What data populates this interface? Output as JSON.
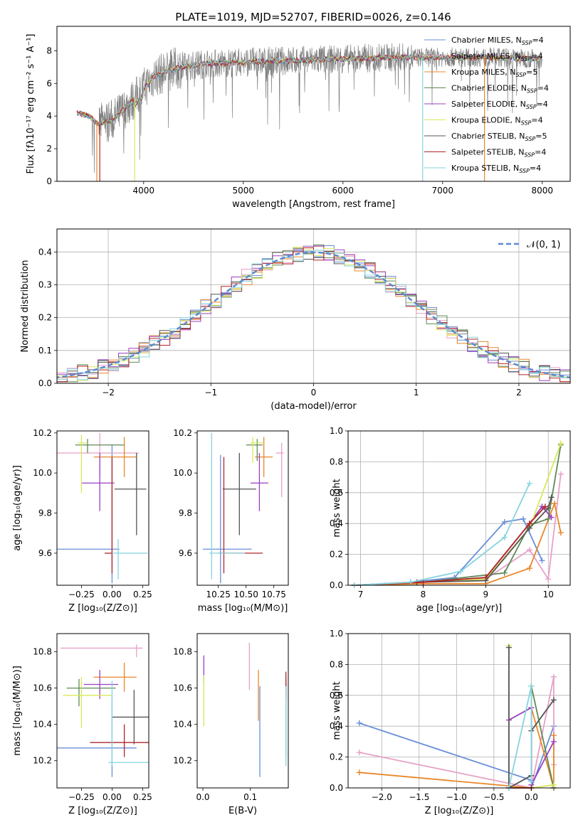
{
  "figure_title": "PLATE=1019, MJD=52707, FIBERID=0026, z=0.146",
  "colors": [
    "#6a8fd8",
    "#e7a0c8",
    "#e8872a",
    "#5f8a55",
    "#9b3fc0",
    "#d8e85a",
    "#555555",
    "#b3242a",
    "#86d4de"
  ],
  "chart_data": [
    {
      "id": "spectrum",
      "type": "line",
      "xlabel": "wavelength [Angstrom, rest frame]",
      "ylabel": "Flux [fλ10⁻¹⁷ erg cm⁻² s⁻¹ A⁻¹]",
      "xlim": [
        3130,
        8280
      ],
      "ylim": [
        0,
        9.5
      ],
      "xticks": [
        4000,
        5000,
        6000,
        7000,
        8000
      ],
      "yticks": [
        0,
        2,
        4,
        6,
        8
      ],
      "legend_position": "upper-right",
      "continuum": {
        "x": [
          3330,
          3450,
          3550,
          3700,
          3900,
          4100,
          4300,
          4600,
          5000,
          5500,
          6000,
          6500,
          7000,
          7500,
          8000
        ],
        "y": [
          4.2,
          4.0,
          3.5,
          3.8,
          5.0,
          6.4,
          6.9,
          7.2,
          7.3,
          7.4,
          7.5,
          7.6,
          7.6,
          7.6,
          7.5
        ]
      },
      "data_note_range": [
        3330,
        8000
      ],
      "series": [
        {
          "name": "Chabrier MILES, N",
          "sub": "SSP",
          "suffix": "=4"
        },
        {
          "name": "Salpeter MILES, N",
          "sub": "SSP",
          "suffix": "=4"
        },
        {
          "name": "Kroupa MILES, N",
          "sub": "SSP",
          "suffix": "=5"
        },
        {
          "name": "Chabrier ELODIE, N",
          "sub": "SSP",
          "suffix": "=4"
        },
        {
          "name": "Salpeter ELODIE, N",
          "sub": "SSP",
          "suffix": "=4"
        },
        {
          "name": "Kroupa ELODIE, N",
          "sub": "SSP",
          "suffix": "=4"
        },
        {
          "name": "Chabrier STELIB, N",
          "sub": "SSP",
          "suffix": "=5"
        },
        {
          "name": "Salpeter STELIB, N",
          "sub": "SSP",
          "suffix": "=4"
        },
        {
          "name": "Kroupa STELIB, N",
          "sub": "SSP",
          "suffix": "=4"
        }
      ]
    },
    {
      "id": "residuals",
      "type": "histogram",
      "xlabel": "(data-model)/error",
      "ylabel": "Normed distribution",
      "xlim": [
        -2.5,
        2.5
      ],
      "ylim": [
        0,
        0.47
      ],
      "xticks": [
        -2,
        -1,
        0,
        1,
        2
      ],
      "yticks": [
        0.0,
        0.1,
        0.2,
        0.3,
        0.4
      ],
      "grid": true,
      "legend_label": "𝒩(0, 1)",
      "legend_position": "upper-right",
      "bin_width": 0.1
    },
    {
      "id": "age_vs_Z",
      "type": "errorbar",
      "xlabel": "Z [log₁₀(Z/Z⊙)]",
      "ylabel": "age  [log₁₀(age/yr)]",
      "xlim": [
        -0.45,
        0.3
      ],
      "ylim": [
        9.44,
        10.21
      ],
      "xticks": [
        -0.25,
        0.0,
        0.25
      ],
      "yticks": [
        9.6,
        9.8,
        10.0,
        10.2
      ],
      "points": [
        {
          "x": 0.0,
          "y": 9.62,
          "xerr": [
            0.45,
            0.06
          ],
          "yerr": [
            0.17,
            0.52
          ]
        },
        {
          "x": -0.1,
          "y": 10.1,
          "xerr": [
            0.35,
            0.32
          ],
          "yerr": [
            0.12,
            0.1
          ]
        },
        {
          "x": 0.1,
          "y": 10.08,
          "xerr": [
            0.25,
            0.1
          ],
          "yerr": [
            0.1,
            0.1
          ]
        },
        {
          "x": -0.2,
          "y": 10.14,
          "xerr": [
            0.1,
            0.3
          ],
          "yerr": [
            0.04,
            0.03
          ]
        },
        {
          "x": -0.1,
          "y": 9.95,
          "xerr": [
            0.15,
            0.12
          ],
          "yerr": [
            0.14,
            0.15
          ]
        },
        {
          "x": -0.25,
          "y": 10.15,
          "xerr": [
            0.03,
            0.04
          ],
          "yerr": [
            0.25,
            0.04
          ]
        },
        {
          "x": 0.2,
          "y": 9.92,
          "xerr": [
            0.18,
            0.08
          ],
          "yerr": [
            0.23,
            0.18
          ]
        },
        {
          "x": 0.0,
          "y": 9.6,
          "xerr": [
            0.06,
            0.0
          ],
          "yerr": [
            0.1,
            0.48
          ]
        },
        {
          "x": 0.05,
          "y": 9.6,
          "xerr": [
            0.05,
            0.24
          ],
          "yerr": [
            0.13,
            0.07
          ]
        }
      ]
    },
    {
      "id": "age_vs_mass",
      "type": "errorbar",
      "xlabel": "mass [log₁₀(M/M⊙)]",
      "ylabel": "",
      "xlim": [
        10.06,
        10.88
      ],
      "ylim": [
        9.44,
        10.21
      ],
      "xticks": [
        10.25,
        10.5,
        10.75
      ],
      "yticks": [
        9.6,
        9.8,
        10.0,
        10.2
      ],
      "points": [
        {
          "x": 10.27,
          "y": 9.62,
          "xerr": [
            0.16,
            0.28
          ],
          "yerr": [
            0.17,
            0.47
          ]
        },
        {
          "x": 10.82,
          "y": 10.1,
          "xerr": [
            0.05,
            0.02
          ],
          "yerr": [
            0.22,
            0.05
          ]
        },
        {
          "x": 10.66,
          "y": 10.08,
          "xerr": [
            0.08,
            0.08
          ],
          "yerr": [
            0.1,
            0.1
          ]
        },
        {
          "x": 10.6,
          "y": 10.14,
          "xerr": [
            0.1,
            0.05
          ],
          "yerr": [
            0.08,
            0.03
          ]
        },
        {
          "x": 10.62,
          "y": 9.95,
          "xerr": [
            0.08,
            0.08
          ],
          "yerr": [
            0.14,
            0.15
          ]
        },
        {
          "x": 10.56,
          "y": 10.15,
          "xerr": [
            0.02,
            0.1
          ],
          "yerr": [
            0.1,
            0.03
          ]
        },
        {
          "x": 10.44,
          "y": 9.92,
          "xerr": [
            0.15,
            0.15
          ],
          "yerr": [
            0.23,
            0.18
          ]
        },
        {
          "x": 10.3,
          "y": 9.6,
          "xerr": [
            0.05,
            0.35
          ],
          "yerr": [
            0.1,
            0.48
          ]
        },
        {
          "x": 10.19,
          "y": 9.6,
          "xerr": [
            0.02,
            0.3
          ],
          "yerr": [
            0.13,
            0.6
          ]
        }
      ]
    },
    {
      "id": "weight_vs_age",
      "type": "line",
      "xlabel": "age  [log₁₀(age/yr)]",
      "ylabel": "mass weight",
      "xlim": [
        6.8,
        10.35
      ],
      "ylim": [
        0,
        1.0
      ],
      "xticks": [
        7,
        8,
        9,
        10
      ],
      "yticks": [
        0.0,
        0.2,
        0.4,
        0.6,
        0.8,
        1.0
      ],
      "grid": true,
      "series": [
        {
          "x": [
            6.9,
            7.8,
            8.5,
            9.3,
            9.6,
            9.9
          ],
          "y": [
            0.0,
            0.02,
            0.05,
            0.41,
            0.43,
            0.16
          ]
        },
        {
          "x": [
            6.9,
            8.0,
            9.0,
            9.7,
            10.0,
            10.2
          ],
          "y": [
            0.0,
            0.02,
            0.04,
            0.23,
            0.04,
            0.72
          ]
        },
        {
          "x": [
            6.9,
            8.0,
            9.0,
            9.7,
            10.1,
            10.2
          ],
          "y": [
            0.0,
            0.01,
            0.01,
            0.11,
            0.53,
            0.34
          ]
        },
        {
          "x": [
            6.9,
            8.0,
            9.3,
            9.7,
            10.0,
            10.2
          ],
          "y": [
            0.0,
            0.02,
            0.08,
            0.39,
            0.43,
            0.91
          ]
        },
        {
          "x": [
            6.9,
            8.0,
            9.0,
            9.7,
            9.9,
            10.05
          ],
          "y": [
            0.0,
            0.02,
            0.05,
            0.4,
            0.51,
            0.44
          ]
        },
        {
          "x": [
            6.9,
            8.0,
            9.0,
            9.7,
            10.2
          ],
          "y": [
            0.0,
            0.02,
            0.04,
            0.37,
            0.92
          ]
        },
        {
          "x": [
            6.9,
            7.9,
            9.0,
            9.7,
            10.0,
            10.05
          ],
          "y": [
            0.0,
            0.02,
            0.03,
            0.37,
            0.5,
            0.57
          ]
        },
        {
          "x": [
            6.9,
            8.0,
            9.0,
            9.7,
            9.95
          ],
          "y": [
            0.0,
            0.02,
            0.05,
            0.4,
            0.51
          ]
        },
        {
          "x": [
            6.9,
            7.8,
            8.6,
            9.3,
            9.7
          ],
          "y": [
            0.0,
            0.02,
            0.09,
            0.31,
            0.66
          ]
        }
      ]
    },
    {
      "id": "mass_vs_Z",
      "type": "errorbar",
      "xlabel": "Z [log₁₀(Z/Z⊙)]",
      "ylabel": "mass [log₁₀(M/M⊙)]",
      "xlim": [
        -0.45,
        0.3
      ],
      "ylim": [
        10.05,
        10.9
      ],
      "xticks": [
        -0.25,
        0.0,
        0.25
      ],
      "yticks": [
        10.2,
        10.4,
        10.6,
        10.8
      ],
      "points": [
        {
          "x": 0.0,
          "y": 10.27,
          "xerr": [
            0.45,
            0.2
          ],
          "yerr": [
            0.16,
            0.28
          ]
        },
        {
          "x": 0.2,
          "y": 10.82,
          "xerr": [
            0.62,
            0.05
          ],
          "yerr": [
            0.05,
            0.02
          ]
        },
        {
          "x": 0.1,
          "y": 10.66,
          "xerr": [
            0.25,
            0.1
          ],
          "yerr": [
            0.08,
            0.08
          ]
        },
        {
          "x": -0.27,
          "y": 10.6,
          "xerr": [
            0.1,
            0.3
          ],
          "yerr": [
            0.1,
            0.05
          ]
        },
        {
          "x": -0.1,
          "y": 10.62,
          "xerr": [
            0.13,
            0.15
          ],
          "yerr": [
            0.08,
            0.08
          ]
        },
        {
          "x": -0.25,
          "y": 10.56,
          "xerr": [
            0.15,
            0.25
          ],
          "yerr": [
            0.18,
            0.1
          ]
        },
        {
          "x": 0.18,
          "y": 10.44,
          "xerr": [
            0.18,
            0.12
          ],
          "yerr": [
            0.15,
            0.15
          ]
        },
        {
          "x": 0.1,
          "y": 10.3,
          "xerr": [
            0.28,
            0.2
          ],
          "yerr": [
            0.08,
            0.1
          ]
        },
        {
          "x": 0.0,
          "y": 10.19,
          "xerr": [
            0.03,
            0.3
          ],
          "yerr": [
            0.02,
            0.45
          ]
        }
      ]
    },
    {
      "id": "mass_vs_EBV",
      "type": "errorbar",
      "xlabel": "E(B-V)",
      "ylabel": "",
      "xlim": [
        -0.012,
        0.18
      ],
      "ylim": [
        10.05,
        10.9
      ],
      "xticks": [
        0.0,
        0.1
      ],
      "yticks": [
        10.2,
        10.4,
        10.6,
        10.8
      ],
      "points": [
        {
          "x": 0.12,
          "y": 10.27,
          "xerr": [
            0,
            0
          ],
          "yerr": [
            0.16,
            0.34
          ]
        },
        {
          "x": 0.098,
          "y": 10.7,
          "xerr": [
            0,
            0
          ],
          "yerr": [
            0.11,
            0.15
          ]
        },
        {
          "x": 0.117,
          "y": 10.55,
          "xerr": [
            0,
            0
          ],
          "yerr": [
            0.13,
            0.15
          ]
        },
        {
          "x": 0.175,
          "y": 10.5,
          "xerr": [
            0,
            0
          ],
          "yerr": [
            0.28,
            0.1
          ]
        },
        {
          "x": 0.002,
          "y": 10.7,
          "xerr": [
            0,
            0
          ],
          "yerr": [
            0.08,
            0.08
          ]
        },
        {
          "x": 0.002,
          "y": 10.53,
          "xerr": [
            0,
            0
          ],
          "yerr": [
            0.14,
            0.14
          ]
        },
        {
          "x": 0.175,
          "y": 10.6,
          "xerr": [
            0,
            0
          ],
          "yerr": [
            0.05,
            0.05
          ]
        },
        {
          "x": 0.175,
          "y": 10.6,
          "xerr": [
            0,
            0
          ],
          "yerr": [
            0.06,
            0.09
          ]
        },
        {
          "x": 0.175,
          "y": 10.45,
          "xerr": [
            0,
            0
          ],
          "yerr": [
            0.28,
            0.16
          ]
        }
      ]
    },
    {
      "id": "weight_vs_Z",
      "type": "line",
      "xlabel": "Z [log₁₀(Z/Z⊙)]",
      "ylabel": "mass weight",
      "xlim": [
        -2.45,
        0.52
      ],
      "ylim": [
        0,
        1.0
      ],
      "xticks": [
        -2.0,
        -1.5,
        -1.0,
        -0.5,
        0.0
      ],
      "yticks": [
        0.0,
        0.2,
        0.4,
        0.6,
        0.8,
        1.0
      ],
      "grid": true,
      "series": [
        {
          "x": [
            -2.3,
            0.0,
            0.0,
            0.3
          ],
          "y": [
            0.42,
            0.05,
            0.0,
            0.4
          ]
        },
        {
          "x": [
            -2.3,
            0.0,
            0.3,
            0.3
          ],
          "y": [
            0.23,
            0.0,
            0.72,
            0.15
          ]
        },
        {
          "x": [
            -2.3,
            0.0,
            0.0,
            0.3,
            0.3
          ],
          "y": [
            0.1,
            0.0,
            0.52,
            0.0,
            0.34
          ]
        },
        {
          "x": [
            -0.3,
            0.0,
            0.0,
            0.3
          ],
          "y": [
            0.0,
            0.0,
            0.66,
            0.0
          ]
        },
        {
          "x": [
            -0.3,
            0.0,
            0.0,
            0.3
          ],
          "y": [
            0.44,
            0.52,
            0.02,
            0.3
          ]
        },
        {
          "x": [
            -0.3,
            -0.3,
            0.0,
            0.3
          ],
          "y": [
            0.92,
            0.0,
            0.0,
            0.02
          ]
        },
        {
          "x": [
            -0.3,
            -0.3,
            0.0,
            0.0,
            0.3
          ],
          "y": [
            0.91,
            0.0,
            0.08,
            0.37,
            0.57
          ]
        },
        {
          "x": [
            -0.3,
            0.0
          ],
          "y": [
            0.0,
            0.0
          ]
        },
        {
          "x": [
            -0.3,
            0.0,
            0.0
          ],
          "y": [
            0.0,
            0.66,
            0.04
          ]
        }
      ]
    }
  ]
}
